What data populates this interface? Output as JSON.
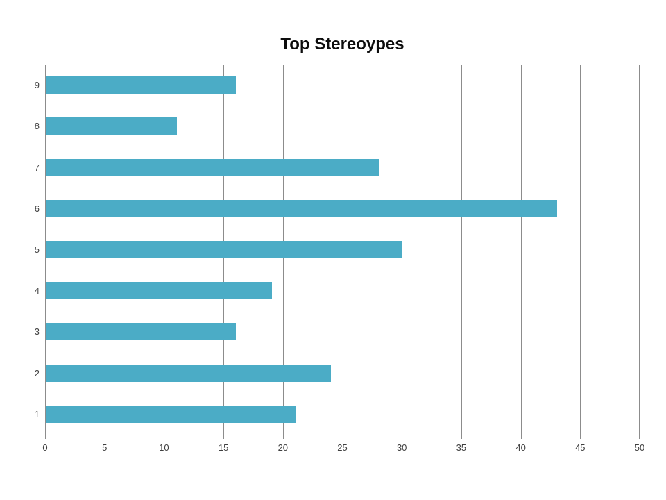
{
  "page": {
    "background_color": "#ffffff"
  },
  "chart_data": {
    "type": "bar",
    "orientation": "horizontal",
    "title": "Top Stereoypes",
    "categories": [
      "9",
      "8",
      "7",
      "6",
      "5",
      "4",
      "3",
      "2",
      "1"
    ],
    "values": [
      16,
      11,
      28,
      43,
      30,
      19,
      16,
      24,
      21
    ],
    "xlabel": "",
    "ylabel": "",
    "xlim": [
      0,
      50
    ],
    "xtick_step": 5,
    "xtick_labels": [
      "0",
      "5",
      "10",
      "15",
      "20",
      "25",
      "30",
      "35",
      "40",
      "45",
      "50"
    ],
    "grid": "vertical-on",
    "legend": "none",
    "bar_color": "#4BACC6",
    "gridline_color": "#8c8c8c",
    "axis_line_color": "#8c8c8c",
    "tick_label_color": "#3f3f3f",
    "title_color": "#0d0d0d"
  }
}
